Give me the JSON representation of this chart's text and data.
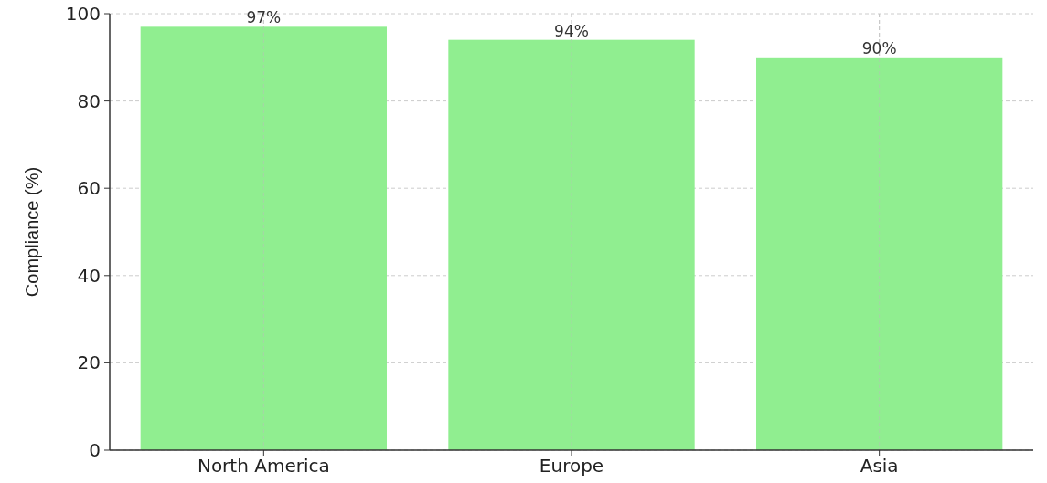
{
  "chart_data": {
    "type": "bar",
    "categories": [
      "North America",
      "Europe",
      "Asia"
    ],
    "values": [
      97,
      94,
      90
    ],
    "color": "#90ee90",
    "value_labels": [
      "97%",
      "94%",
      "90%"
    ],
    "ylabel": "Compliance (%)",
    "ylim": [
      0,
      100
    ],
    "yticks": [
      0,
      20,
      40,
      60,
      80,
      100
    ],
    "grid": true
  }
}
